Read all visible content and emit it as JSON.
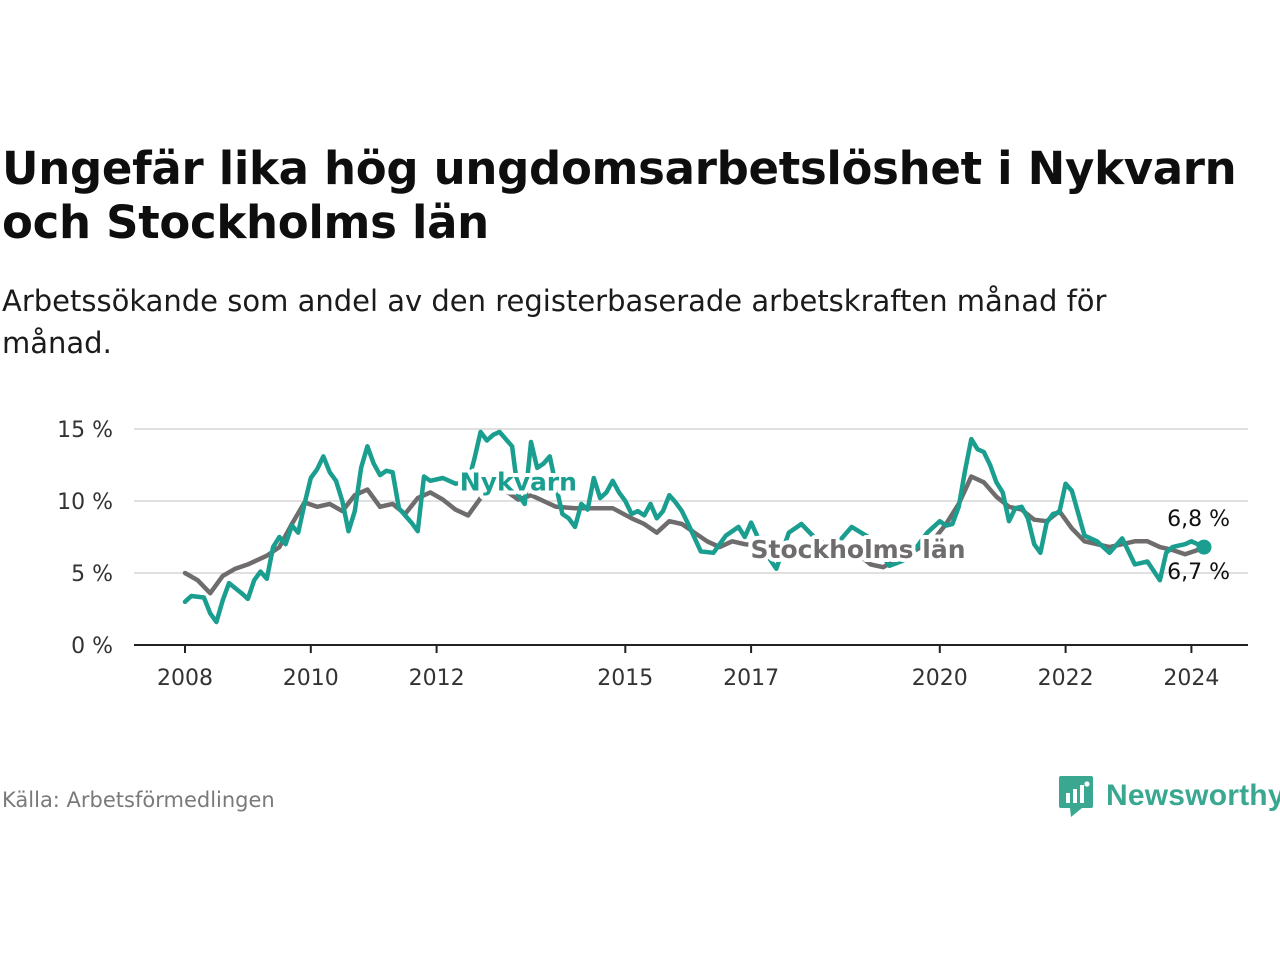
{
  "title": "Ungefär lika hög ungdomsarbetslöshet i Nykvarn och Stockholms län",
  "subtitle": "Arbetssökande som andel av den registerbaserade arbetskraften månad för månad.",
  "source": "Källa: Arbetsförmedlingen",
  "brand": {
    "name": "Newsworthy",
    "icon": "newsworthy-logo-icon",
    "color": "#3aa891"
  },
  "chart_data": {
    "type": "line",
    "title": "Ungefär lika hög ungdomsarbetslöshet i Nykvarn och Stockholms län",
    "xlabel": "",
    "ylabel": "",
    "xlim": [
      2007.5,
      2025.0
    ],
    "ylim": [
      0,
      15
    ],
    "grid": true,
    "y_ticks": [
      0,
      5,
      10,
      15
    ],
    "y_tick_labels": [
      "0 %",
      "5 %",
      "10 %",
      "15 %"
    ],
    "x_ticks": [
      2008,
      2010,
      2012,
      2015,
      2017,
      2020,
      2022,
      2024
    ],
    "x_tick_labels": [
      "2008",
      "2010",
      "2012",
      "2015",
      "2017",
      "2020",
      "2022",
      "2024"
    ],
    "series": [
      {
        "name": "Stockholms län",
        "color": "#6f6c6d",
        "end_label": "6,7 %",
        "x": [
          2008.0,
          2008.2,
          2008.4,
          2008.6,
          2008.8,
          2009.0,
          2009.3,
          2009.5,
          2009.7,
          2009.9,
          2010.1,
          2010.3,
          2010.5,
          2010.7,
          2010.9,
          2011.1,
          2011.3,
          2011.5,
          2011.7,
          2011.9,
          2012.1,
          2012.3,
          2012.5,
          2012.7,
          2012.9,
          2013.1,
          2013.3,
          2013.5,
          2013.7,
          2013.9,
          2014.2,
          2014.5,
          2014.8,
          2015.1,
          2015.3,
          2015.5,
          2015.7,
          2015.9,
          2016.1,
          2016.3,
          2016.5,
          2016.7,
          2016.9,
          2017.1,
          2017.3,
          2017.5,
          2017.7,
          2017.9,
          2018.1,
          2018.3,
          2018.5,
          2018.7,
          2018.9,
          2019.1,
          2019.3,
          2019.5,
          2019.7,
          2019.9,
          2020.1,
          2020.3,
          2020.5,
          2020.7,
          2020.9,
          2021.1,
          2021.3,
          2021.5,
          2021.7,
          2021.9,
          2022.1,
          2022.3,
          2022.5,
          2022.7,
          2022.9,
          2023.1,
          2023.3,
          2023.5,
          2023.7,
          2023.9,
          2024.1,
          2024.2
        ],
        "values": [
          5.0,
          4.5,
          3.6,
          4.8,
          5.3,
          5.6,
          6.2,
          6.8,
          8.4,
          9.9,
          9.6,
          9.8,
          9.3,
          10.4,
          10.8,
          9.6,
          9.8,
          9.1,
          10.2,
          10.6,
          10.1,
          9.4,
          9.0,
          10.2,
          10.9,
          10.7,
          10.1,
          10.4,
          10.0,
          9.6,
          9.5,
          9.5,
          9.5,
          8.8,
          8.4,
          7.8,
          8.6,
          8.4,
          7.8,
          7.2,
          6.8,
          7.2,
          7.0,
          6.9,
          6.7,
          6.7,
          6.6,
          6.6,
          6.5,
          6.6,
          6.2,
          6.3,
          5.6,
          5.4,
          5.9,
          6.3,
          6.8,
          7.3,
          8.4,
          9.8,
          11.7,
          11.3,
          10.3,
          9.6,
          9.4,
          8.7,
          8.6,
          9.3,
          8.1,
          7.2,
          7.0,
          6.8,
          7.0,
          7.2,
          7.2,
          6.8,
          6.6,
          6.3,
          6.6,
          6.7
        ]
      },
      {
        "name": "Nykvarn",
        "color": "#1a9e8f",
        "end_label": "6,8 %",
        "x": [
          2008.0,
          2008.1,
          2008.3,
          2008.4,
          2008.5,
          2008.6,
          2008.7,
          2008.9,
          2009.0,
          2009.1,
          2009.2,
          2009.3,
          2009.4,
          2009.5,
          2009.6,
          2009.7,
          2009.8,
          2009.9,
          2010.0,
          2010.1,
          2010.2,
          2010.3,
          2010.4,
          2010.5,
          2010.6,
          2010.7,
          2010.8,
          2010.9,
          2011.0,
          2011.1,
          2011.2,
          2011.3,
          2011.4,
          2011.5,
          2011.6,
          2011.7,
          2011.8,
          2011.9,
          2012.1,
          2012.3,
          2012.5,
          2012.6,
          2012.7,
          2012.8,
          2012.9,
          2013.0,
          2013.1,
          2013.2,
          2013.3,
          2013.4,
          2013.5,
          2013.6,
          2013.7,
          2013.8,
          2013.9,
          2014.0,
          2014.1,
          2014.2,
          2014.3,
          2014.4,
          2014.5,
          2014.6,
          2014.7,
          2014.8,
          2014.9,
          2015.0,
          2015.1,
          2015.2,
          2015.3,
          2015.4,
          2015.5,
          2015.6,
          2015.7,
          2015.8,
          2015.9,
          2016.0,
          2016.2,
          2016.4,
          2016.6,
          2016.8,
          2016.9,
          2017.0,
          2017.2,
          2017.4,
          2017.6,
          2017.8,
          2018.0,
          2018.3,
          2018.6,
          2018.9,
          2019.2,
          2019.5,
          2019.8,
          2020.0,
          2020.1,
          2020.2,
          2020.3,
          2020.4,
          2020.5,
          2020.6,
          2020.7,
          2020.8,
          2020.9,
          2021.0,
          2021.1,
          2021.2,
          2021.3,
          2021.4,
          2021.5,
          2021.6,
          2021.7,
          2021.8,
          2021.9,
          2022.0,
          2022.1,
          2022.3,
          2022.5,
          2022.7,
          2022.9,
          2023.1,
          2023.3,
          2023.5,
          2023.6,
          2023.7,
          2023.8,
          2023.9,
          2024.0,
          2024.1,
          2024.2
        ],
        "values": [
          3.0,
          3.4,
          3.3,
          2.2,
          1.6,
          3.1,
          4.3,
          3.6,
          3.2,
          4.5,
          5.1,
          4.6,
          6.8,
          7.5,
          7.0,
          8.3,
          7.8,
          9.8,
          11.6,
          12.2,
          13.1,
          12.0,
          11.4,
          10.0,
          7.9,
          9.3,
          12.3,
          13.8,
          12.6,
          11.8,
          12.1,
          12.0,
          9.5,
          9.0,
          8.5,
          7.9,
          11.7,
          11.4,
          11.6,
          11.2,
          11.3,
          12.9,
          14.8,
          14.2,
          14.6,
          14.8,
          14.3,
          13.8,
          10.4,
          9.8,
          14.1,
          12.3,
          12.6,
          13.1,
          11.0,
          9.1,
          8.8,
          8.2,
          9.8,
          9.4,
          11.6,
          10.2,
          10.6,
          11.4,
          10.6,
          10.0,
          9.1,
          9.3,
          9.0,
          9.8,
          8.8,
          9.3,
          10.4,
          9.9,
          9.3,
          8.4,
          6.5,
          6.4,
          7.6,
          8.2,
          7.5,
          8.5,
          6.6,
          5.3,
          7.8,
          8.4,
          7.5,
          6.7,
          8.2,
          7.4,
          5.5,
          6.0,
          7.8,
          8.6,
          8.3,
          8.4,
          9.6,
          12.1,
          14.3,
          13.6,
          13.4,
          12.5,
          11.3,
          10.6,
          8.6,
          9.5,
          9.6,
          8.8,
          7.0,
          6.4,
          8.5,
          9.1,
          9.2,
          11.2,
          10.7,
          7.6,
          7.2,
          6.4,
          7.4,
          5.6,
          5.8,
          4.5,
          6.4,
          6.8,
          6.9,
          7.0,
          7.2,
          7.0,
          6.8
        ]
      }
    ],
    "annotations": [
      {
        "text": "Nykvarn",
        "x": 2013.3,
        "y": 11.3,
        "color": "#1a9e8f"
      },
      {
        "text": "Stockholms län",
        "x": 2018.7,
        "y": 6.6,
        "color": "#6f6c6d"
      }
    ]
  }
}
